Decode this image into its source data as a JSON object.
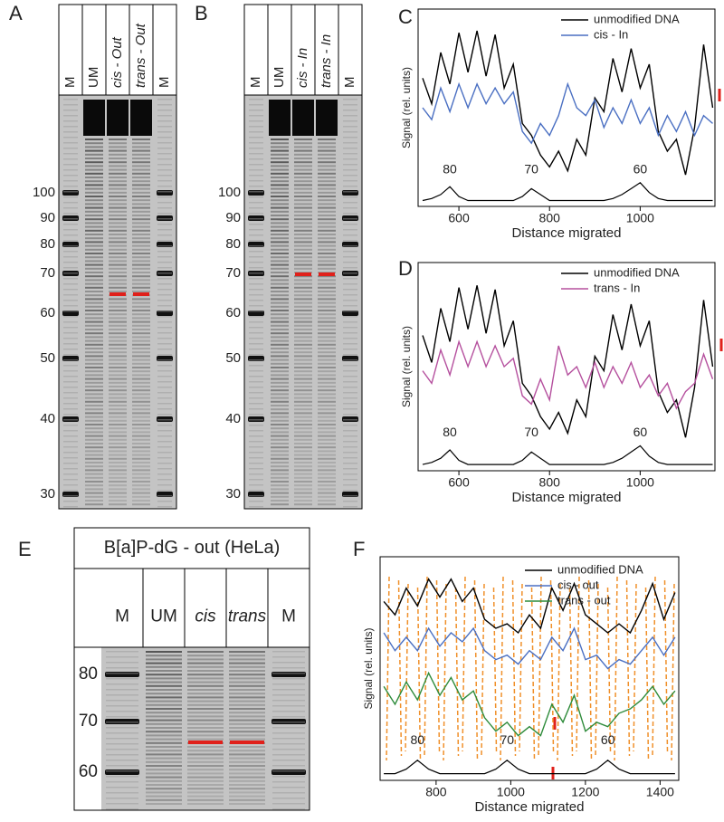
{
  "gels": [
    {
      "letter": "A",
      "lanes": [
        "M",
        "UM",
        "cis - Out",
        "trans - Out",
        "M"
      ],
      "markers": [
        "100",
        "90",
        "80",
        "70",
        "60",
        "50",
        "40",
        "30"
      ]
    },
    {
      "letter": "B",
      "lanes": [
        "M",
        "UM",
        "cis - In",
        "trans - In",
        "M"
      ],
      "markers": [
        "100",
        "90",
        "80",
        "70",
        "60",
        "50",
        "40",
        "30"
      ]
    },
    {
      "letter": "E",
      "title": "B[a]P-dG - out (HeLa)",
      "lanes": [
        "M",
        "UM",
        "cis",
        "trans",
        "M"
      ],
      "markers": [
        "80",
        "70",
        "60"
      ]
    }
  ],
  "chart_data": [
    {
      "type": "line",
      "label": "C",
      "x_label": "Distance migrated",
      "y_label": "Signal (rel. units)",
      "xlim": [
        510,
        1165
      ],
      "ylim": [
        0,
        10
      ],
      "xticks": [
        600,
        800,
        1000
      ],
      "x": [
        520,
        540,
        560,
        580,
        600,
        620,
        640,
        660,
        680,
        700,
        720,
        740,
        760,
        780,
        800,
        820,
        840,
        860,
        880,
        900,
        920,
        940,
        960,
        980,
        1000,
        1020,
        1040,
        1060,
        1080,
        1100,
        1120,
        1140,
        1160
      ],
      "series": [
        {
          "name": "unmodified DNA",
          "color": "#000000",
          "values": [
            6.5,
            5.2,
            7.8,
            6.2,
            8.8,
            6.8,
            8.9,
            6.6,
            8.7,
            6.0,
            7.2,
            4.2,
            3.6,
            2.6,
            2.0,
            2.8,
            1.8,
            3.4,
            2.6,
            5.5,
            4.8,
            7.5,
            5.8,
            8.0,
            6.0,
            7.2,
            3.8,
            2.8,
            3.4,
            1.6,
            4.0,
            8.2,
            5.0
          ]
        },
        {
          "name": "cis - In",
          "color": "#4a6fc2",
          "values": [
            5.0,
            4.4,
            6.0,
            4.8,
            6.2,
            5.0,
            6.2,
            5.2,
            6.0,
            5.2,
            5.8,
            3.8,
            3.2,
            4.2,
            3.6,
            4.6,
            6.2,
            5.0,
            4.6,
            5.4,
            4.0,
            5.0,
            4.2,
            5.4,
            4.2,
            5.0,
            3.6,
            4.6,
            3.8,
            4.8,
            3.6,
            4.6,
            4.2
          ]
        }
      ],
      "ladder": {
        "color": "#000000",
        "values": [
          0.3,
          0.4,
          0.6,
          1.0,
          0.5,
          0.3,
          0.3,
          0.3,
          0.3,
          0.3,
          0.3,
          0.5,
          0.9,
          0.6,
          0.3,
          0.3,
          0.3,
          0.3,
          0.3,
          0.3,
          0.3,
          0.4,
          0.6,
          0.9,
          1.2,
          0.7,
          0.4,
          0.3,
          0.3,
          0.3,
          0.3,
          0.3,
          0.3
        ]
      },
      "peak_labels": [
        {
          "label": "80",
          "x": 580
        },
        {
          "label": "70",
          "x": 760
        },
        {
          "label": "60",
          "x": 1000
        }
      ]
    },
    {
      "type": "line",
      "label": "D",
      "x_label": "Distance migrated",
      "y_label": "Signal (rel. units)",
      "xlim": [
        510,
        1165
      ],
      "ylim": [
        0,
        10
      ],
      "xticks": [
        600,
        800,
        1000
      ],
      "x": [
        520,
        540,
        560,
        580,
        600,
        620,
        640,
        660,
        680,
        700,
        720,
        740,
        760,
        780,
        800,
        820,
        840,
        860,
        880,
        900,
        920,
        940,
        960,
        980,
        1000,
        1020,
        1040,
        1060,
        1080,
        1100,
        1120,
        1140,
        1160
      ],
      "series": [
        {
          "name": "unmodified DNA",
          "color": "#000000",
          "values": [
            6.5,
            5.2,
            7.8,
            6.2,
            8.8,
            6.8,
            8.9,
            6.6,
            8.7,
            6.0,
            7.2,
            4.2,
            3.6,
            2.6,
            2.0,
            2.8,
            1.8,
            3.4,
            2.6,
            5.5,
            4.8,
            7.5,
            5.8,
            8.0,
            6.0,
            7.2,
            3.8,
            2.8,
            3.4,
            1.6,
            4.0,
            8.2,
            5.0
          ]
        },
        {
          "name": "trans - In",
          "color": "#b5509e",
          "values": [
            4.8,
            4.2,
            5.8,
            4.6,
            6.2,
            5.0,
            6.2,
            5.0,
            6.0,
            5.0,
            5.4,
            3.6,
            3.2,
            4.4,
            3.4,
            6.0,
            4.6,
            5.0,
            4.0,
            5.2,
            4.0,
            5.0,
            4.2,
            5.2,
            4.0,
            4.6,
            3.6,
            4.2,
            3.0,
            3.8,
            4.2,
            5.6,
            4.4
          ]
        }
      ],
      "ladder": {
        "color": "#000000",
        "values": [
          0.3,
          0.4,
          0.6,
          1.0,
          0.5,
          0.3,
          0.3,
          0.3,
          0.3,
          0.3,
          0.3,
          0.5,
          0.9,
          0.6,
          0.3,
          0.3,
          0.3,
          0.3,
          0.3,
          0.3,
          0.3,
          0.4,
          0.6,
          0.9,
          1.2,
          0.7,
          0.4,
          0.3,
          0.3,
          0.3,
          0.3,
          0.3,
          0.3
        ]
      },
      "peak_labels": [
        {
          "label": "80",
          "x": 580
        },
        {
          "label": "70",
          "x": 760
        },
        {
          "label": "60",
          "x": 1000
        }
      ]
    },
    {
      "type": "line",
      "label": "F",
      "x_label": "Distance migrated",
      "y_label": "Signal (rel. units)",
      "xlim": [
        650,
        1450
      ],
      "ylim": [
        0,
        10
      ],
      "xticks": [
        800,
        1000,
        1200,
        1400
      ],
      "x": [
        660,
        690,
        720,
        750,
        780,
        810,
        840,
        870,
        900,
        930,
        960,
        990,
        1020,
        1050,
        1080,
        1110,
        1140,
        1170,
        1200,
        1230,
        1260,
        1290,
        1320,
        1350,
        1380,
        1410,
        1440
      ],
      "series": [
        {
          "name": "unmodified DNA",
          "color": "#000000",
          "values": [
            8.0,
            7.4,
            8.6,
            7.8,
            9.0,
            8.2,
            9.0,
            8.0,
            8.6,
            7.2,
            6.8,
            7.0,
            6.6,
            7.4,
            6.8,
            8.6,
            7.6,
            8.8,
            7.4,
            7.0,
            6.6,
            7.0,
            6.6,
            7.6,
            8.8,
            7.2,
            8.4
          ]
        },
        {
          "name": "cis - out",
          "color": "#4a6fc2",
          "values": [
            6.6,
            5.8,
            6.4,
            5.8,
            6.8,
            6.0,
            6.6,
            6.2,
            6.8,
            5.8,
            5.4,
            5.6,
            5.2,
            5.8,
            5.4,
            6.4,
            5.8,
            6.8,
            5.4,
            5.6,
            5.0,
            5.4,
            5.2,
            5.8,
            6.4,
            5.6,
            6.4
          ]
        },
        {
          "name": "trans - out",
          "color": "#2e8b3a",
          "values": [
            4.2,
            3.4,
            4.4,
            3.6,
            4.8,
            3.8,
            4.6,
            3.6,
            4.0,
            2.8,
            2.2,
            2.6,
            2.0,
            2.4,
            2.0,
            3.4,
            2.6,
            3.8,
            2.2,
            2.6,
            2.4,
            3.0,
            3.2,
            3.6,
            4.2,
            3.4,
            4.0
          ]
        }
      ],
      "ladder": {
        "color": "#000000",
        "values": [
          0.3,
          0.3,
          0.5,
          0.9,
          0.5,
          0.3,
          0.3,
          0.3,
          0.3,
          0.3,
          0.5,
          0.9,
          0.5,
          0.3,
          0.3,
          0.3,
          0.3,
          0.3,
          0.3,
          0.5,
          0.9,
          0.5,
          0.3,
          0.3,
          0.3,
          0.3,
          0.3
        ]
      },
      "peak_labels": [
        {
          "label": "80",
          "x": 750
        },
        {
          "label": "70",
          "x": 990
        },
        {
          "label": "60",
          "x": 1260
        }
      ]
    }
  ]
}
